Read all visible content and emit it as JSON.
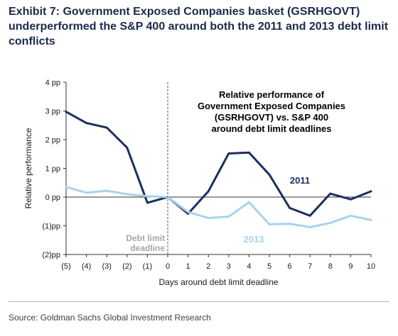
{
  "exhibit_title": "Exhibit 7: Government Exposed Companies basket (GSRHGOVT) underperformed the S&P 400 around both the 2011 and 2013 debt limit conflicts",
  "source": "Source: Goldman Sachs Global Investment Research",
  "colors": {
    "series_2011": "#1b2f5e",
    "series_2013": "#a9d2ee",
    "deadline_label": "#a6a6a6",
    "text": "#1a1a1a"
  },
  "chart_data": {
    "type": "line",
    "title": [
      "Relative performance of",
      "Government Exposed Companies",
      "(GSRHGOVT) vs. S&P 400",
      "around debt limit deadlines"
    ],
    "xlabel": "Days around debt limit deadline",
    "ylabel": "Relative performance",
    "x": [
      -5,
      -4,
      -3,
      -2,
      -1,
      0,
      1,
      2,
      3,
      4,
      5,
      6,
      7,
      8,
      9,
      10
    ],
    "x_tick_labels": [
      "(5)",
      "(4)",
      "(3)",
      "(2)",
      "(1)",
      "0",
      "1",
      "2",
      "3",
      "4",
      "5",
      "6",
      "7",
      "8",
      "9",
      "10"
    ],
    "y_ticks": [
      4,
      3,
      2,
      1,
      0,
      -1,
      -2
    ],
    "y_tick_labels": [
      "4 pp",
      "3 pp",
      "2 pp",
      "1 pp",
      "0 pp",
      "(1)pp",
      "(2)pp"
    ],
    "ylim": [
      -2,
      4
    ],
    "xlim": [
      -5,
      10
    ],
    "series": [
      {
        "name": "2011",
        "values": [
          2.97,
          2.58,
          2.42,
          1.72,
          -0.2,
          0,
          -0.58,
          0.2,
          1.52,
          1.55,
          0.78,
          -0.38,
          -0.65,
          0.12,
          -0.08,
          0.2
        ]
      },
      {
        "name": "2013",
        "values": [
          0.35,
          0.15,
          0.22,
          0.1,
          0.03,
          0,
          -0.52,
          -0.73,
          -0.68,
          -0.18,
          -0.95,
          -0.93,
          -1.05,
          -0.9,
          -0.65,
          -0.8
        ]
      }
    ],
    "deadline_marker": {
      "x": 0,
      "label": [
        "Debt limit",
        "deadline"
      ]
    },
    "zero_line": true,
    "grid": false
  }
}
